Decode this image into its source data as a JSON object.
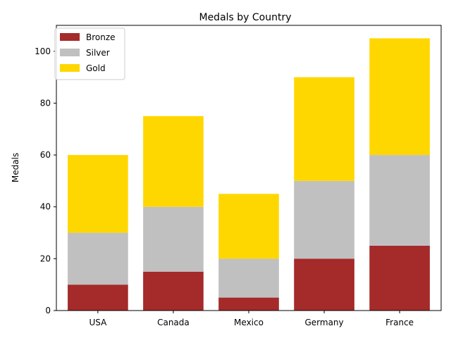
{
  "chart_data": {
    "type": "bar",
    "stacked": true,
    "title": "Medals by Country",
    "xlabel": "",
    "ylabel": "Medals",
    "categories": [
      "USA",
      "Canada",
      "Mexico",
      "Germany",
      "France"
    ],
    "series": [
      {
        "name": "Bronze",
        "color": "#a52a2a",
        "values": [
          10,
          15,
          5,
          20,
          25
        ]
      },
      {
        "name": "Silver",
        "color": "#c0c0c0",
        "values": [
          20,
          25,
          15,
          30,
          35
        ]
      },
      {
        "name": "Gold",
        "color": "#ffd700",
        "values": [
          30,
          35,
          25,
          40,
          45
        ]
      }
    ],
    "ylim": [
      0,
      110
    ],
    "yticks": [
      0,
      20,
      40,
      60,
      80,
      100
    ],
    "grid": false,
    "legend_position": "top-left"
  }
}
